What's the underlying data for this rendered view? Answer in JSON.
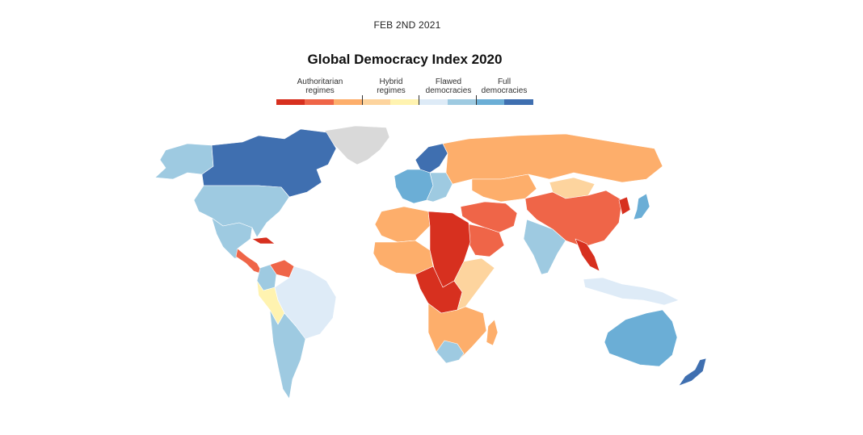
{
  "header": {
    "date": "FEB 2ND 2021",
    "title": "Global Democracy Index 2020"
  },
  "legend": {
    "categories": [
      {
        "line1": "Authoritarian",
        "line2": "regimes"
      },
      {
        "line1": "Hybrid",
        "line2": "regimes"
      },
      {
        "line1": "Flawed",
        "line2": "democracies"
      },
      {
        "line1": "Full",
        "line2": "democracies"
      }
    ],
    "colors": [
      "#d7301f",
      "#ef6548",
      "#fdae6b",
      "#fdd49e",
      "#fff3b0",
      "#deebf7",
      "#9ecae1",
      "#6baed6",
      "#3f6fb0"
    ],
    "no_data_color": "#d9d9d9"
  }
}
